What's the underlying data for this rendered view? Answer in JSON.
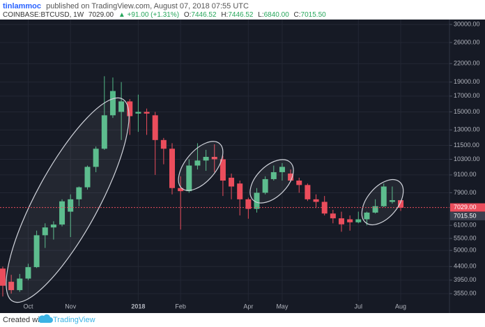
{
  "header": {
    "author": "tinlammoc",
    "published": "published on TradingView.com, August 07, 2018 07:55 UTC",
    "symbol": "COINBASE:BTCUSD, 1W",
    "price": "7029.00",
    "change": "▲ +91.00 (+1.31%)",
    "ohlc": [
      {
        "label": "O:",
        "value": "7446.52"
      },
      {
        "label": "H:",
        "value": "7446.52"
      },
      {
        "label": "L:",
        "value": "6840.00"
      },
      {
        "label": "C:",
        "value": "7015.50"
      }
    ]
  },
  "footer": {
    "text": "Created with",
    "brand": "TradingView"
  },
  "chart_data": {
    "type": "candlestick",
    "log_scale": true,
    "grid": true,
    "up_color": "#53b987",
    "down_color": "#eb4d5c",
    "categories": [
      null,
      null,
      null,
      "Oct",
      null,
      null,
      null,
      null,
      "Nov",
      null,
      null,
      null,
      null,
      null,
      null,
      null,
      "2018",
      null,
      null,
      null,
      null,
      "Feb",
      null,
      null,
      null,
      null,
      null,
      null,
      null,
      "Apr",
      null,
      null,
      null,
      "May",
      null,
      null,
      null,
      null,
      null,
      null,
      null,
      null,
      "Jul",
      null,
      null,
      null,
      null,
      "Aug"
    ],
    "open": [
      4330,
      3900,
      3650,
      4000,
      4380,
      5640,
      6000,
      6140,
      6800,
      7500,
      8250,
      9700,
      11200,
      14600,
      15000,
      16300,
      14800,
      15000,
      14600,
      12000,
      11200,
      8200,
      8000,
      9800,
      10200,
      10500,
      10300,
      8900,
      8500,
      7500,
      6950,
      7900,
      8800,
      9300,
      9200,
      8700,
      8400,
      7500,
      7350,
      6700,
      6450,
      6400,
      6250,
      6400,
      6750,
      7100,
      7350,
      7446.52
    ],
    "high": [
      4400,
      4120,
      4150,
      4500,
      5850,
      6200,
      6300,
      7500,
      7800,
      8300,
      9800,
      11400,
      19900,
      19700,
      19000,
      16600,
      17200,
      15400,
      15000,
      12200,
      11700,
      9000,
      10300,
      11700,
      11100,
      11600,
      10600,
      9200,
      8700,
      7600,
      8200,
      9000,
      9800,
      9990,
      9500,
      8900,
      8500,
      7800,
      7700,
      6900,
      6800,
      6600,
      6800,
      6800,
      7500,
      8500,
      8300,
      7446.52
    ],
    "low": [
      3470,
      3550,
      3600,
      3950,
      4350,
      5100,
      5450,
      6050,
      5560,
      7100,
      8100,
      9300,
      11100,
      14300,
      12000,
      12500,
      12800,
      12500,
      9100,
      9900,
      7800,
      5900,
      7900,
      9500,
      9400,
      9300,
      7700,
      7500,
      6600,
      6430,
      6750,
      7800,
      8700,
      8700,
      8600,
      7900,
      7400,
      7000,
      6600,
      6200,
      5800,
      5850,
      6200,
      6100,
      6700,
      7050,
      7250,
      6840
    ],
    "close": [
      3780,
      3650,
      4000,
      4380,
      5640,
      6000,
      6140,
      7380,
      7500,
      8250,
      9700,
      11200,
      14600,
      17700,
      16300,
      14500,
      15000,
      14800,
      12000,
      11200,
      8200,
      8000,
      9800,
      10200,
      10500,
      10300,
      8700,
      8300,
      7500,
      6950,
      7900,
      8800,
      9300,
      9700,
      8700,
      8400,
      7500,
      7350,
      6700,
      6450,
      6150,
      6250,
      6400,
      6750,
      7100,
      8300,
      7446.52,
      7015.5
    ],
    "ylim": [
      3060,
      31200
    ],
    "yticks": [
      {
        "value": 3550,
        "label": "3550.00"
      },
      {
        "value": 3950,
        "label": "3950.00"
      },
      {
        "value": 4400,
        "label": "4400.00"
      },
      {
        "value": 5000,
        "label": "5000.00"
      },
      {
        "value": 5500,
        "label": "5500.00"
      },
      {
        "value": 6100,
        "label": "6100.00"
      },
      {
        "value": 7900,
        "label": "7900.00"
      },
      {
        "value": 9100,
        "label": "9100.00"
      },
      {
        "value": 10300,
        "label": "10300.00"
      },
      {
        "value": 11500,
        "label": "11500.00"
      },
      {
        "value": 13000,
        "label": "13000.00"
      },
      {
        "value": 15000,
        "label": "15000.00"
      },
      {
        "value": 17000,
        "label": "17000.00"
      },
      {
        "value": 19000,
        "label": "19000.00"
      },
      {
        "value": 22000,
        "label": "22000.00"
      },
      {
        "value": 26000,
        "label": "26000.00"
      },
      {
        "value": 30000,
        "label": "30000.00"
      }
    ],
    "price_lines": [
      {
        "value": 7029,
        "label": "7029.00",
        "color": "#eb4d5c"
      },
      {
        "value": 7015.5,
        "label": "7015.50",
        "color": "#3a3f4e"
      }
    ]
  }
}
